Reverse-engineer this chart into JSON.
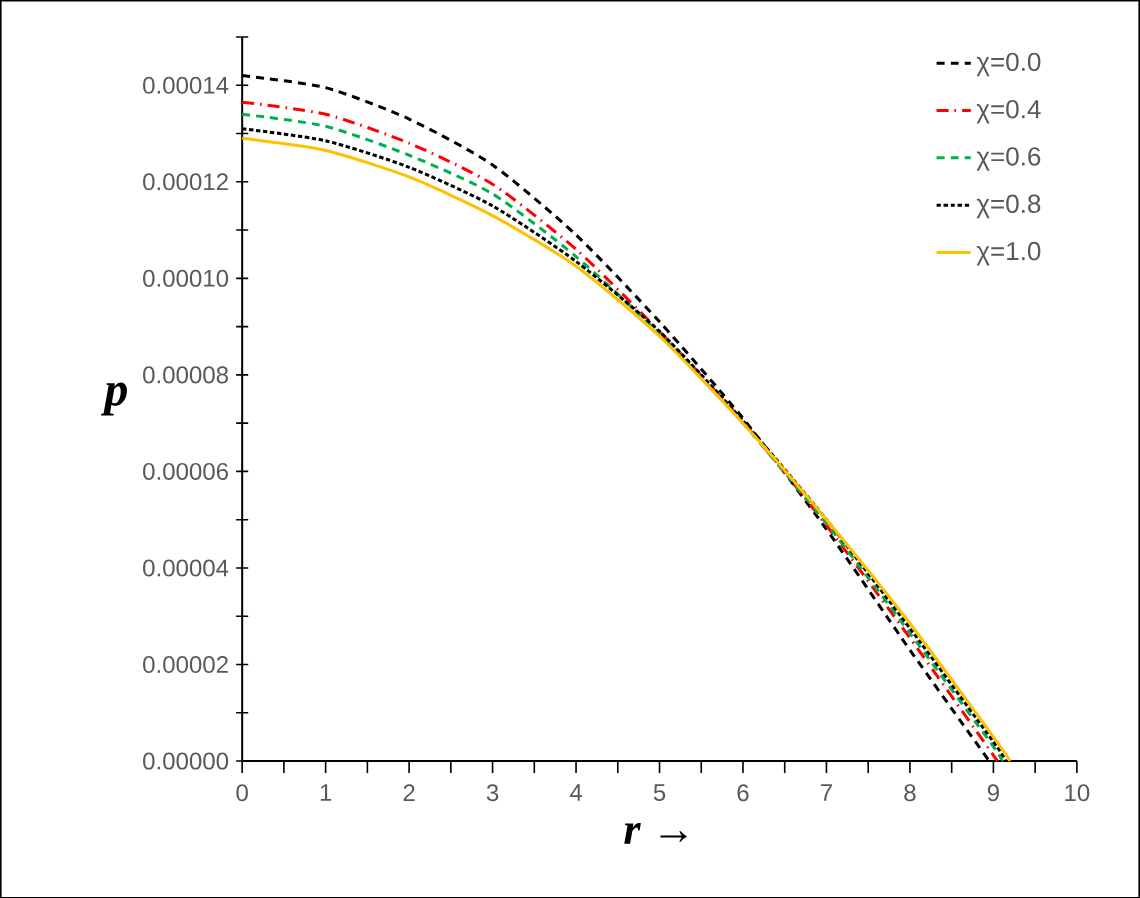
{
  "chart_data": {
    "type": "line",
    "xlabel": "r →",
    "ylabel": "p",
    "xlim": [
      0,
      10
    ],
    "ylim": [
      0,
      0.00015
    ],
    "xticks": [
      0,
      {
        "value": 0.5,
        "label": null
      },
      1,
      {
        "value": 1.5,
        "label": null
      },
      2,
      {
        "value": 2.5,
        "label": null
      },
      3,
      {
        "value": 3.5,
        "label": null
      },
      4,
      {
        "value": 4.5,
        "label": null
      },
      5,
      {
        "value": 5.5,
        "label": null
      },
      6,
      {
        "value": 6.5,
        "label": null
      },
      7,
      {
        "value": 7.5,
        "label": null
      },
      8,
      {
        "value": 8.5,
        "label": null
      },
      9,
      {
        "value": 9.5,
        "label": null
      },
      10
    ],
    "yticks": [
      {
        "value": 0,
        "label": "0.00000"
      },
      {
        "value": 1e-05,
        "label": null
      },
      {
        "value": 2e-05,
        "label": "0.00002"
      },
      {
        "value": 3e-05,
        "label": null
      },
      {
        "value": 4e-05,
        "label": "0.00004"
      },
      {
        "value": 5e-05,
        "label": null
      },
      {
        "value": 6e-05,
        "label": "0.00006"
      },
      {
        "value": 7e-05,
        "label": null
      },
      {
        "value": 8e-05,
        "label": "0.00008"
      },
      {
        "value": 9e-05,
        "label": null
      },
      {
        "value": 0.0001,
        "label": "0.00010"
      },
      {
        "value": 0.00011,
        "label": null
      },
      {
        "value": 0.00012,
        "label": "0.00012"
      },
      {
        "value": 0.00013,
        "label": null
      },
      {
        "value": 0.00014,
        "label": "0.00014"
      },
      {
        "value": 0.00015,
        "label": null
      }
    ],
    "grid": false,
    "legend": "top right",
    "marker": "none",
    "series": [
      {
        "name": "χ=0.0",
        "color": "#000000",
        "line_style": "dashed",
        "x": [
          0,
          1,
          2,
          3,
          4,
          5,
          6,
          7,
          8,
          8.95
        ],
        "values": [
          0.000142,
          0.0001395,
          0.000133,
          0.0001235,
          0.000109,
          9.1e-05,
          7.1e-05,
          4.8e-05,
          2.3e-05,
          0
        ]
      },
      {
        "name": "χ=0.4",
        "color": "#ff0000",
        "line_style": "dashdot",
        "x": [
          0,
          1,
          2,
          3,
          4,
          5,
          6,
          7,
          8,
          9.05
        ],
        "values": [
          0.0001365,
          0.000134,
          0.000128,
          0.0001195,
          0.000106,
          8.9e-05,
          7.03e-05,
          4.88e-05,
          2.55e-05,
          0
        ]
      },
      {
        "name": "χ=0.6",
        "color": "#00b050",
        "line_style": "dashed",
        "x": [
          0,
          1,
          2,
          3,
          4,
          5,
          6,
          7,
          8,
          9,
          9.1
        ],
        "values": [
          0.000134,
          0.0001315,
          0.0001255,
          0.0001175,
          0.0001045,
          8.85e-05,
          7e-05,
          4.92e-05,
          2.65e-05,
          3e-06,
          0
        ]
      },
      {
        "name": "χ=0.8",
        "color": "#000000",
        "line_style": "dotted",
        "x": [
          0,
          1,
          2,
          3,
          4,
          5,
          6,
          7,
          8,
          9,
          9.15
        ],
        "values": [
          0.000131,
          0.0001285,
          0.000123,
          0.000115,
          0.0001035,
          8.9e-05,
          7.05e-05,
          5e-05,
          2.75e-05,
          4e-06,
          0
        ]
      },
      {
        "name": "χ=1.0",
        "color": "#ffc000",
        "line_style": "solid",
        "x": [
          0,
          1,
          2,
          3,
          4,
          5,
          6,
          7,
          8,
          9,
          9.2
        ],
        "values": [
          0.000129,
          0.0001265,
          0.000121,
          0.000113,
          0.0001025,
          8.8e-05,
          7e-05,
          5e-05,
          2.85e-05,
          5e-06,
          0
        ]
      }
    ]
  }
}
